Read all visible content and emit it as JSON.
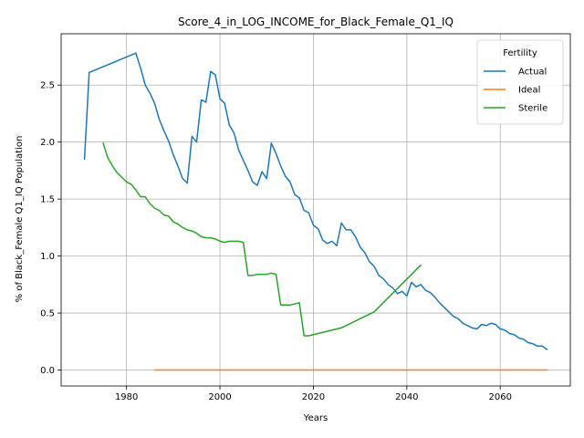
{
  "chart_data": {
    "type": "line",
    "title": "Score_4_in_LOG_INCOME_for_Black_Female_Q1_IQ",
    "xlabel": "Years",
    "ylabel": "% of Black_Female Q1_IQ Population",
    "xlim": [
      1966,
      2075
    ],
    "ylim": [
      -0.14,
      2.95
    ],
    "xticks": [
      1980,
      2000,
      2020,
      2040,
      2060
    ],
    "yticks": [
      0.0,
      0.5,
      1.0,
      1.5,
      2.0,
      2.5
    ],
    "grid": true,
    "legend": {
      "title": "Fertility",
      "placement": "top-right"
    },
    "series": [
      {
        "name": "Actual",
        "color": "#1f77b4",
        "points": [
          [
            1971,
            1.85
          ],
          [
            1972,
            2.61
          ],
          [
            1982,
            2.78
          ],
          [
            1983,
            2.65
          ],
          [
            1984,
            2.5
          ],
          [
            1985,
            2.43
          ],
          [
            1986,
            2.34
          ],
          [
            1987,
            2.2
          ],
          [
            1988,
            2.1
          ],
          [
            1989,
            2.01
          ],
          [
            1990,
            1.89
          ],
          [
            1991,
            1.79
          ],
          [
            1992,
            1.68
          ],
          [
            1993,
            1.64
          ],
          [
            1994,
            2.05
          ],
          [
            1995,
            2.0
          ],
          [
            1996,
            2.37
          ],
          [
            1997,
            2.35
          ],
          [
            1998,
            2.62
          ],
          [
            1999,
            2.59
          ],
          [
            2000,
            2.38
          ],
          [
            2001,
            2.34
          ],
          [
            2002,
            2.15
          ],
          [
            2003,
            2.08
          ],
          [
            2004,
            1.93
          ],
          [
            2005,
            1.84
          ],
          [
            2006,
            1.75
          ],
          [
            2007,
            1.65
          ],
          [
            2008,
            1.62
          ],
          [
            2009,
            1.74
          ],
          [
            2010,
            1.68
          ],
          [
            2011,
            1.99
          ],
          [
            2012,
            1.9
          ],
          [
            2013,
            1.79
          ],
          [
            2014,
            1.7
          ],
          [
            2015,
            1.65
          ],
          [
            2016,
            1.54
          ],
          [
            2017,
            1.51
          ],
          [
            2018,
            1.4
          ],
          [
            2019,
            1.38
          ],
          [
            2020,
            1.27
          ],
          [
            2021,
            1.24
          ],
          [
            2022,
            1.14
          ],
          [
            2023,
            1.11
          ],
          [
            2024,
            1.13
          ],
          [
            2025,
            1.09
          ],
          [
            2026,
            1.29
          ],
          [
            2027,
            1.23
          ],
          [
            2028,
            1.23
          ],
          [
            2029,
            1.17
          ],
          [
            2030,
            1.08
          ],
          [
            2031,
            1.03
          ],
          [
            2032,
            0.95
          ],
          [
            2033,
            0.91
          ],
          [
            2034,
            0.83
          ],
          [
            2035,
            0.8
          ],
          [
            2036,
            0.75
          ],
          [
            2037,
            0.72
          ],
          [
            2038,
            0.67
          ],
          [
            2039,
            0.69
          ],
          [
            2040,
            0.65
          ],
          [
            2041,
            0.77
          ],
          [
            2042,
            0.73
          ],
          [
            2043,
            0.75
          ],
          [
            2044,
            0.7
          ],
          [
            2045,
            0.68
          ],
          [
            2046,
            0.64
          ],
          [
            2047,
            0.59
          ],
          [
            2048,
            0.55
          ],
          [
            2049,
            0.51
          ],
          [
            2050,
            0.47
          ],
          [
            2051,
            0.45
          ],
          [
            2052,
            0.41
          ],
          [
            2053,
            0.39
          ],
          [
            2054,
            0.37
          ],
          [
            2055,
            0.36
          ],
          [
            2056,
            0.4
          ],
          [
            2057,
            0.39
          ],
          [
            2058,
            0.41
          ],
          [
            2059,
            0.4
          ],
          [
            2060,
            0.36
          ],
          [
            2061,
            0.35
          ],
          [
            2062,
            0.32
          ],
          [
            2063,
            0.31
          ],
          [
            2064,
            0.28
          ],
          [
            2065,
            0.27
          ],
          [
            2066,
            0.24
          ],
          [
            2067,
            0.23
          ],
          [
            2068,
            0.21
          ],
          [
            2069,
            0.21
          ],
          [
            2070,
            0.18
          ]
        ]
      },
      {
        "name": "Ideal",
        "color": "#ff7f0e",
        "points": [
          [
            1986,
            0.0
          ],
          [
            2070,
            0.0
          ]
        ]
      },
      {
        "name": "Sterile",
        "color": "#2ca02c",
        "points": [
          [
            1975,
            1.99
          ],
          [
            1976,
            1.86
          ],
          [
            1977,
            1.79
          ],
          [
            1978,
            1.73
          ],
          [
            1979,
            1.69
          ],
          [
            1980,
            1.65
          ],
          [
            1981,
            1.63
          ],
          [
            1982,
            1.58
          ],
          [
            1983,
            1.52
          ],
          [
            1984,
            1.52
          ],
          [
            1985,
            1.46
          ],
          [
            1986,
            1.42
          ],
          [
            1987,
            1.4
          ],
          [
            1988,
            1.36
          ],
          [
            1989,
            1.35
          ],
          [
            1990,
            1.3
          ],
          [
            1991,
            1.28
          ],
          [
            1992,
            1.25
          ],
          [
            1993,
            1.23
          ],
          [
            1994,
            1.22
          ],
          [
            1995,
            1.2
          ],
          [
            1996,
            1.17
          ],
          [
            1997,
            1.16
          ],
          [
            1998,
            1.16
          ],
          [
            1999,
            1.15
          ],
          [
            2000,
            1.13
          ],
          [
            2001,
            1.12
          ],
          [
            2002,
            1.13
          ],
          [
            2003,
            1.13
          ],
          [
            2004,
            1.13
          ],
          [
            2005,
            1.12
          ],
          [
            2006,
            0.83
          ],
          [
            2007,
            0.83
          ],
          [
            2008,
            0.84
          ],
          [
            2009,
            0.84
          ],
          [
            2010,
            0.84
          ],
          [
            2011,
            0.85
          ],
          [
            2012,
            0.84
          ],
          [
            2013,
            0.57
          ],
          [
            2014,
            0.57
          ],
          [
            2015,
            0.57
          ],
          [
            2016,
            0.58
          ],
          [
            2017,
            0.59
          ],
          [
            2018,
            0.3
          ],
          [
            2019,
            0.3
          ],
          [
            2020,
            0.31
          ],
          [
            2021,
            0.32
          ],
          [
            2022,
            0.33
          ],
          [
            2023,
            0.34
          ],
          [
            2024,
            0.35
          ],
          [
            2025,
            0.36
          ],
          [
            2026,
            0.37
          ],
          [
            2027,
            0.39
          ],
          [
            2028,
            0.41
          ],
          [
            2029,
            0.43
          ],
          [
            2030,
            0.45
          ],
          [
            2031,
            0.47
          ],
          [
            2032,
            0.49
          ],
          [
            2033,
            0.51
          ],
          [
            2043,
            0.92
          ]
        ]
      }
    ]
  }
}
